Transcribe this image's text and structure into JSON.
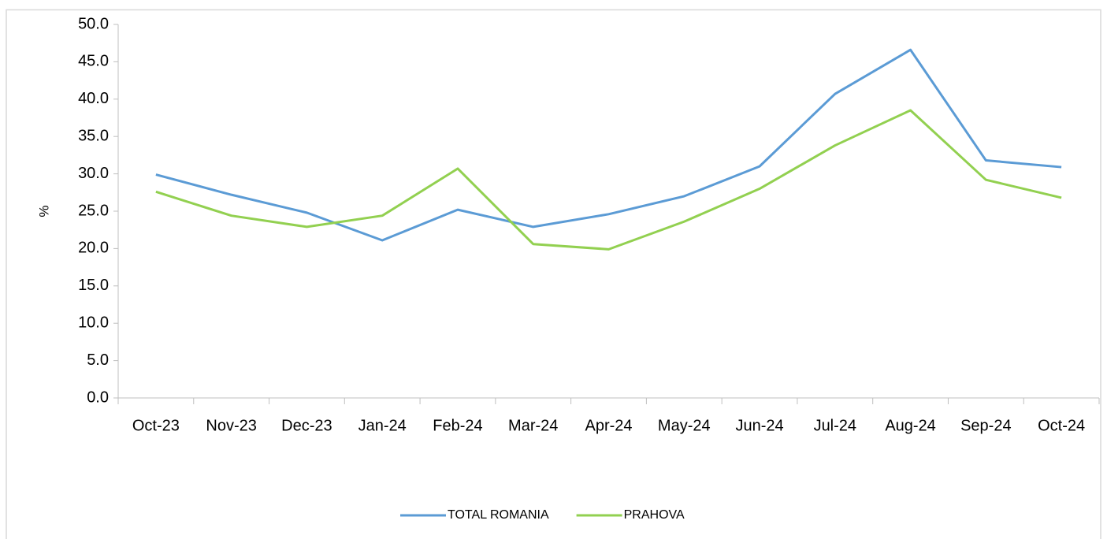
{
  "chart_data": {
    "type": "line",
    "y_label": "%",
    "categories": [
      "Oct-23",
      "Nov-23",
      "Dec-23",
      "Jan-24",
      "Feb-24",
      "Mar-24",
      "Apr-24",
      "May-24",
      "Jun-24",
      "Jul-24",
      "Aug-24",
      "Sep-24",
      "Oct-24"
    ],
    "series": [
      {
        "name": "TOTAL ROMANIA",
        "color": "#5b9bd5",
        "values": [
          29.9,
          27.2,
          24.8,
          21.1,
          25.2,
          22.9,
          24.6,
          27.0,
          31.0,
          40.7,
          46.6,
          31.8,
          30.9
        ]
      },
      {
        "name": "PRAHOVA",
        "color": "#92d050",
        "values": [
          27.6,
          24.4,
          22.9,
          24.4,
          30.7,
          20.6,
          19.9,
          23.6,
          28.0,
          33.8,
          38.5,
          29.2,
          26.8
        ]
      }
    ],
    "ylim": [
      0,
      50
    ],
    "yticks": [
      {
        "value": 0,
        "label": "0.0"
      },
      {
        "value": 5,
        "label": "5.0"
      },
      {
        "value": 10,
        "label": "10.0"
      },
      {
        "value": 15,
        "label": "15.0"
      },
      {
        "value": 20,
        "label": "20.0"
      },
      {
        "value": 25,
        "label": "25.0"
      },
      {
        "value": 30,
        "label": "30.0"
      },
      {
        "value": 35,
        "label": "35.0"
      },
      {
        "value": 40,
        "label": "40.0"
      },
      {
        "value": 45,
        "label": "45.0"
      },
      {
        "value": 50,
        "label": "50.0"
      }
    ],
    "grid": false,
    "legend": "bottom"
  }
}
